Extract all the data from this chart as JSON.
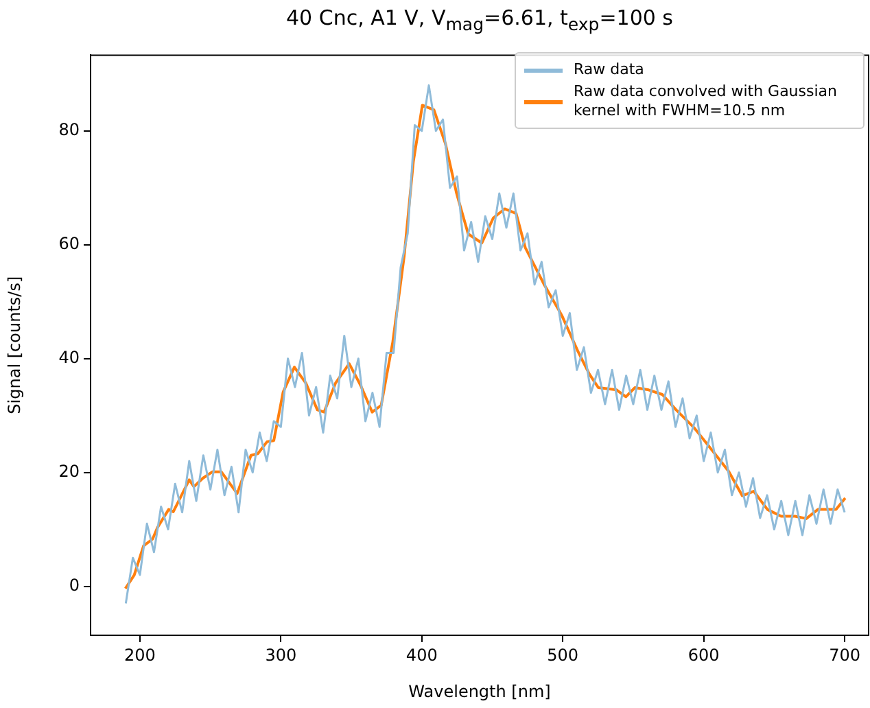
{
  "chart_data": {
    "type": "line",
    "title": "40 Cnc, A1 V, V$_{mag}$=6.61, t$_{exp}$=100 s",
    "xlabel": "Wavelength [nm]",
    "ylabel": "Signal [counts/s]",
    "xlim": [
      165,
      717
    ],
    "xticks": [
      200,
      300,
      400,
      500,
      600,
      700
    ],
    "ylim": [
      -8.6,
      93.3
    ],
    "yticks": [
      0,
      20,
      40,
      60,
      80
    ],
    "grid": false,
    "legend": "top right",
    "series": [
      {
        "name": "Raw data",
        "color": "#8fbbd9",
        "x": [
          190,
          195,
          200,
          205,
          210,
          215,
          220,
          225,
          230,
          235,
          240,
          245,
          250,
          255,
          260,
          265,
          270,
          275,
          280,
          285,
          290,
          295,
          300,
          305,
          310,
          315,
          320,
          325,
          330,
          335,
          340,
          345,
          350,
          355,
          360,
          365,
          370,
          375,
          380,
          385,
          390,
          395,
          400,
          405,
          410,
          415,
          420,
          425,
          430,
          435,
          440,
          445,
          450,
          455,
          460,
          465,
          470,
          475,
          480,
          485,
          490,
          495,
          500,
          505,
          510,
          515,
          520,
          525,
          530,
          535,
          540,
          545,
          550,
          555,
          560,
          565,
          570,
          575,
          580,
          585,
          590,
          595,
          600,
          605,
          610,
          615,
          620,
          625,
          630,
          635,
          640,
          645,
          650,
          655,
          660,
          665,
          670,
          675,
          680,
          685,
          690,
          695,
          700
        ],
        "values": [
          -3,
          5,
          2,
          11,
          6,
          14,
          10,
          18,
          13,
          22,
          15,
          23,
          17,
          24,
          16,
          21,
          13,
          24,
          20,
          27,
          22,
          29,
          28,
          40,
          35,
          41,
          30,
          35,
          27,
          37,
          33,
          44,
          35,
          40,
          29,
          34,
          28,
          41,
          41,
          56,
          62,
          81,
          80,
          88,
          80,
          82,
          70,
          72,
          59,
          64,
          57,
          65,
          61,
          69,
          63,
          69,
          59,
          62,
          53,
          57,
          49,
          52,
          44,
          48,
          38,
          42,
          34,
          38,
          32,
          38,
          31,
          37,
          32,
          38,
          31,
          37,
          31,
          36,
          28,
          33,
          26,
          30,
          22,
          27,
          20,
          24,
          16,
          20,
          14,
          19,
          12,
          16,
          10,
          15,
          9,
          15,
          9,
          16,
          11,
          17,
          11,
          17,
          13
        ]
      },
      {
        "name": "Raw data convolved with Gaussian kernel with FWHM=10.5 nm",
        "color": "#ff7f0e",
        "x": [
          189.7,
          196,
          202.6,
          209,
          212.4,
          220.4,
          223.7,
          235,
          238.3,
          244.7,
          251.3,
          257.8,
          269,
          278.8,
          283.7,
          290.2,
          295,
          301.6,
          309.6,
          317.7,
          325.9,
          330.7,
          338.8,
          348.5,
          356.6,
          364.8,
          371.2,
          379.4,
          387.5,
          394,
          400.4,
          408.6,
          416.7,
          424.7,
          432.9,
          442.6,
          450.7,
          458.8,
          466.9,
          473.4,
          486.4,
          499.3,
          510.7,
          518.8,
          525.3,
          538.2,
          544.8,
          551.2,
          560.9,
          570.6,
          580.4,
          593.4,
          606.3,
          617.7,
          627.4,
          635.5,
          645.2,
          654.9,
          664.7,
          672.8,
          681,
          693.9,
          700.4
        ],
        "values": [
          -0.4,
          2.0,
          7.1,
          8.3,
          10.3,
          13.5,
          13.1,
          18.7,
          17.5,
          19.0,
          20.1,
          20.1,
          16.3,
          23.0,
          23.3,
          25.4,
          25.6,
          34.1,
          38.5,
          35.7,
          31.0,
          30.6,
          35.7,
          39.1,
          35.3,
          30.6,
          31.8,
          42.9,
          58.0,
          74.6,
          84.5,
          83.7,
          77.8,
          69.0,
          61.9,
          60.3,
          64.7,
          66.3,
          65.5,
          59.5,
          53.2,
          47.6,
          41.3,
          37.3,
          34.9,
          34.5,
          33.3,
          34.9,
          34.5,
          33.7,
          31.0,
          27.8,
          23.8,
          20.2,
          15.9,
          16.7,
          13.5,
          12.3,
          12.3,
          11.9,
          13.5,
          13.5,
          15.5
        ]
      }
    ]
  }
}
